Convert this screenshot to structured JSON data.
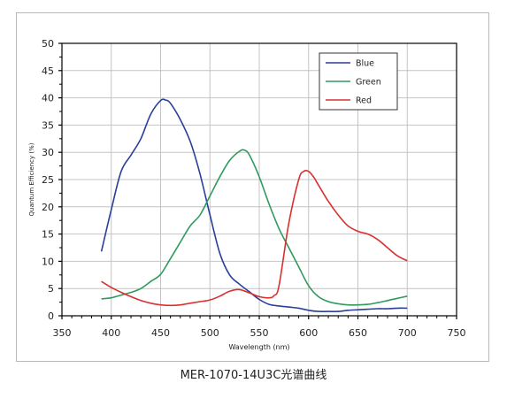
{
  "caption": "MER-1070-14U3C光谱曲线",
  "chart_data": {
    "type": "line",
    "xlabel": "Wavelength (nm)",
    "ylabel": "Quantum Efficiency (%)",
    "xlim": [
      350,
      750
    ],
    "ylim": [
      0,
      50
    ],
    "xticks": [
      350,
      400,
      450,
      500,
      550,
      600,
      650,
      700,
      750
    ],
    "yticks": [
      0,
      5,
      10,
      15,
      20,
      25,
      30,
      35,
      40,
      45,
      50
    ],
    "grid": true,
    "legend_position": "top-right",
    "series": [
      {
        "name": "Blue",
        "color": "#2a3f9a",
        "x": [
          390,
          400,
          410,
          420,
          430,
          440,
          450,
          455,
          460,
          470,
          480,
          490,
          500,
          510,
          520,
          530,
          540,
          550,
          560,
          570,
          580,
          590,
          600,
          610,
          620,
          630,
          640,
          650,
          660,
          670,
          680,
          690,
          700
        ],
        "y": [
          11.8,
          19.5,
          26.5,
          29.5,
          32.5,
          37,
          39.5,
          39.6,
          39,
          36,
          32,
          26,
          18.5,
          11.5,
          7.5,
          5.8,
          4.4,
          3,
          2.1,
          1.8,
          1.6,
          1.4,
          1,
          0.8,
          0.8,
          0.8,
          1,
          1.1,
          1.2,
          1.3,
          1.3,
          1.4,
          1.4
        ]
      },
      {
        "name": "Green",
        "color": "#2e9a5e",
        "x": [
          390,
          400,
          410,
          420,
          430,
          440,
          450,
          460,
          470,
          480,
          490,
          500,
          510,
          520,
          530,
          535,
          540,
          550,
          560,
          570,
          580,
          590,
          600,
          610,
          620,
          630,
          640,
          650,
          660,
          670,
          680,
          690,
          700
        ],
        "y": [
          3.1,
          3.3,
          3.8,
          4.3,
          5,
          6.3,
          7.6,
          10.5,
          13.5,
          16.5,
          18.5,
          22,
          25.5,
          28.5,
          30.2,
          30.4,
          29.5,
          25.5,
          20.5,
          16,
          12.5,
          9,
          5.5,
          3.5,
          2.6,
          2.2,
          2,
          2,
          2.1,
          2.4,
          2.8,
          3.2,
          3.6
        ]
      },
      {
        "name": "Red",
        "color": "#d93030",
        "x": [
          390,
          400,
          410,
          420,
          430,
          440,
          450,
          460,
          470,
          480,
          490,
          500,
          510,
          520,
          530,
          540,
          550,
          560,
          565,
          570,
          580,
          590,
          595,
          600,
          605,
          610,
          620,
          630,
          640,
          650,
          660,
          670,
          680,
          690,
          700
        ],
        "y": [
          6.3,
          5.2,
          4.3,
          3.5,
          2.8,
          2.3,
          2,
          1.9,
          2,
          2.3,
          2.6,
          2.9,
          3.6,
          4.5,
          4.8,
          4.2,
          3.5,
          3.3,
          3.7,
          5.5,
          17,
          25,
          26.5,
          26.5,
          25.5,
          24,
          21,
          18.5,
          16.5,
          15.5,
          15,
          14,
          12.5,
          11,
          10.1
        ]
      }
    ]
  }
}
